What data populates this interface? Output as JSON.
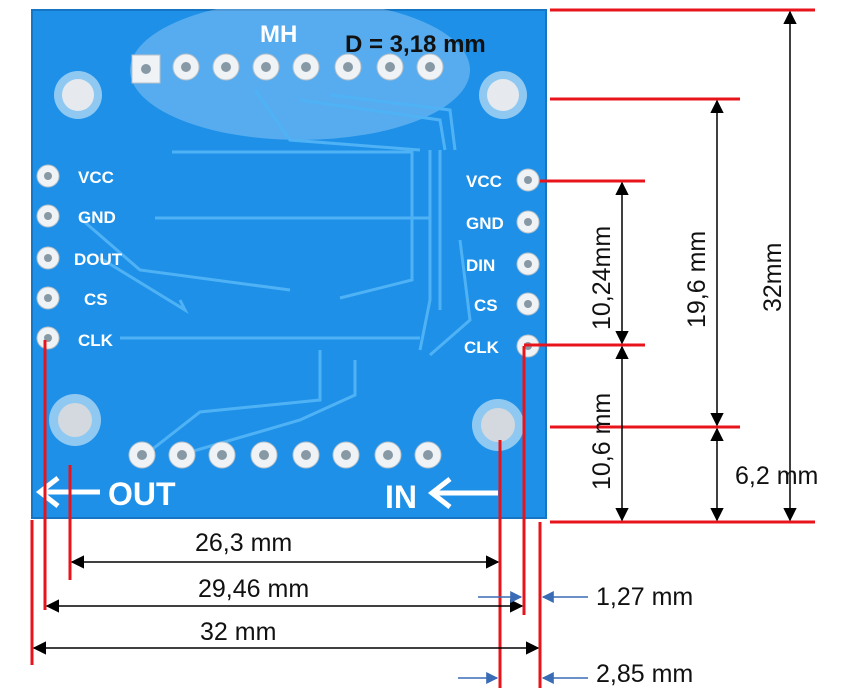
{
  "board": {
    "marking": "MH",
    "left_pins": [
      "VCC",
      "GND",
      "DOUT",
      "CS",
      "CLK"
    ],
    "right_pins": [
      "VCC",
      "GND",
      "DIN",
      "CS",
      "CLK"
    ],
    "out_label": "OUT",
    "in_label": "IN",
    "colors": {
      "pcb": "#1e90e8",
      "pad": "#dfe5ea",
      "trace": "#4fb2f5"
    }
  },
  "dimensions": {
    "hole_diameter": "D = 3,18 mm",
    "h_26_3": "26,3 mm",
    "h_29_46": "29,46 mm",
    "h_32": "32 mm",
    "h_1_27": "1,27 mm",
    "h_2_85": "2,85 mm",
    "v_10_24": "10,24mm",
    "v_10_6": "10,6 mm",
    "v_19_6": "19,6 mm",
    "v_32": "32mm",
    "v_6_2": "6,2 mm"
  },
  "colors": {
    "dimension_line": "#e8141c",
    "arrow_line": "#000000",
    "offset_arrow": "#3a6bb5"
  }
}
